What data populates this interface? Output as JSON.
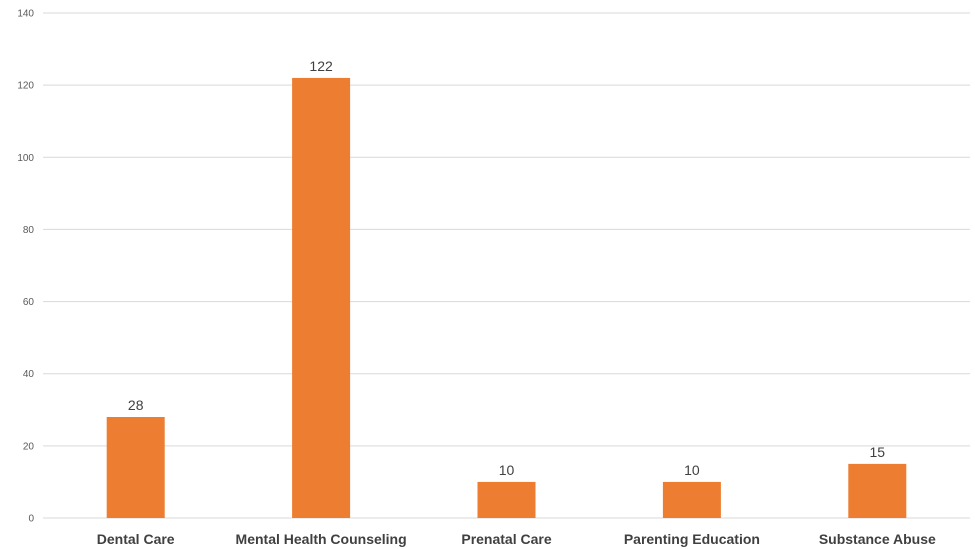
{
  "chart_data": {
    "type": "bar",
    "title": "",
    "xlabel": "",
    "ylabel": "",
    "categories": [
      "Dental Care",
      "Mental Health Counseling",
      "Prenatal Care",
      "Parenting Education",
      "Substance Abuse"
    ],
    "values": [
      28,
      122,
      10,
      10,
      15
    ],
    "ylim": [
      0,
      140
    ],
    "yticks": [
      0,
      20,
      40,
      60,
      80,
      100,
      120,
      140
    ],
    "grid": true,
    "legend": "none",
    "bar_color": "#ED7D31",
    "data_labels": true
  }
}
